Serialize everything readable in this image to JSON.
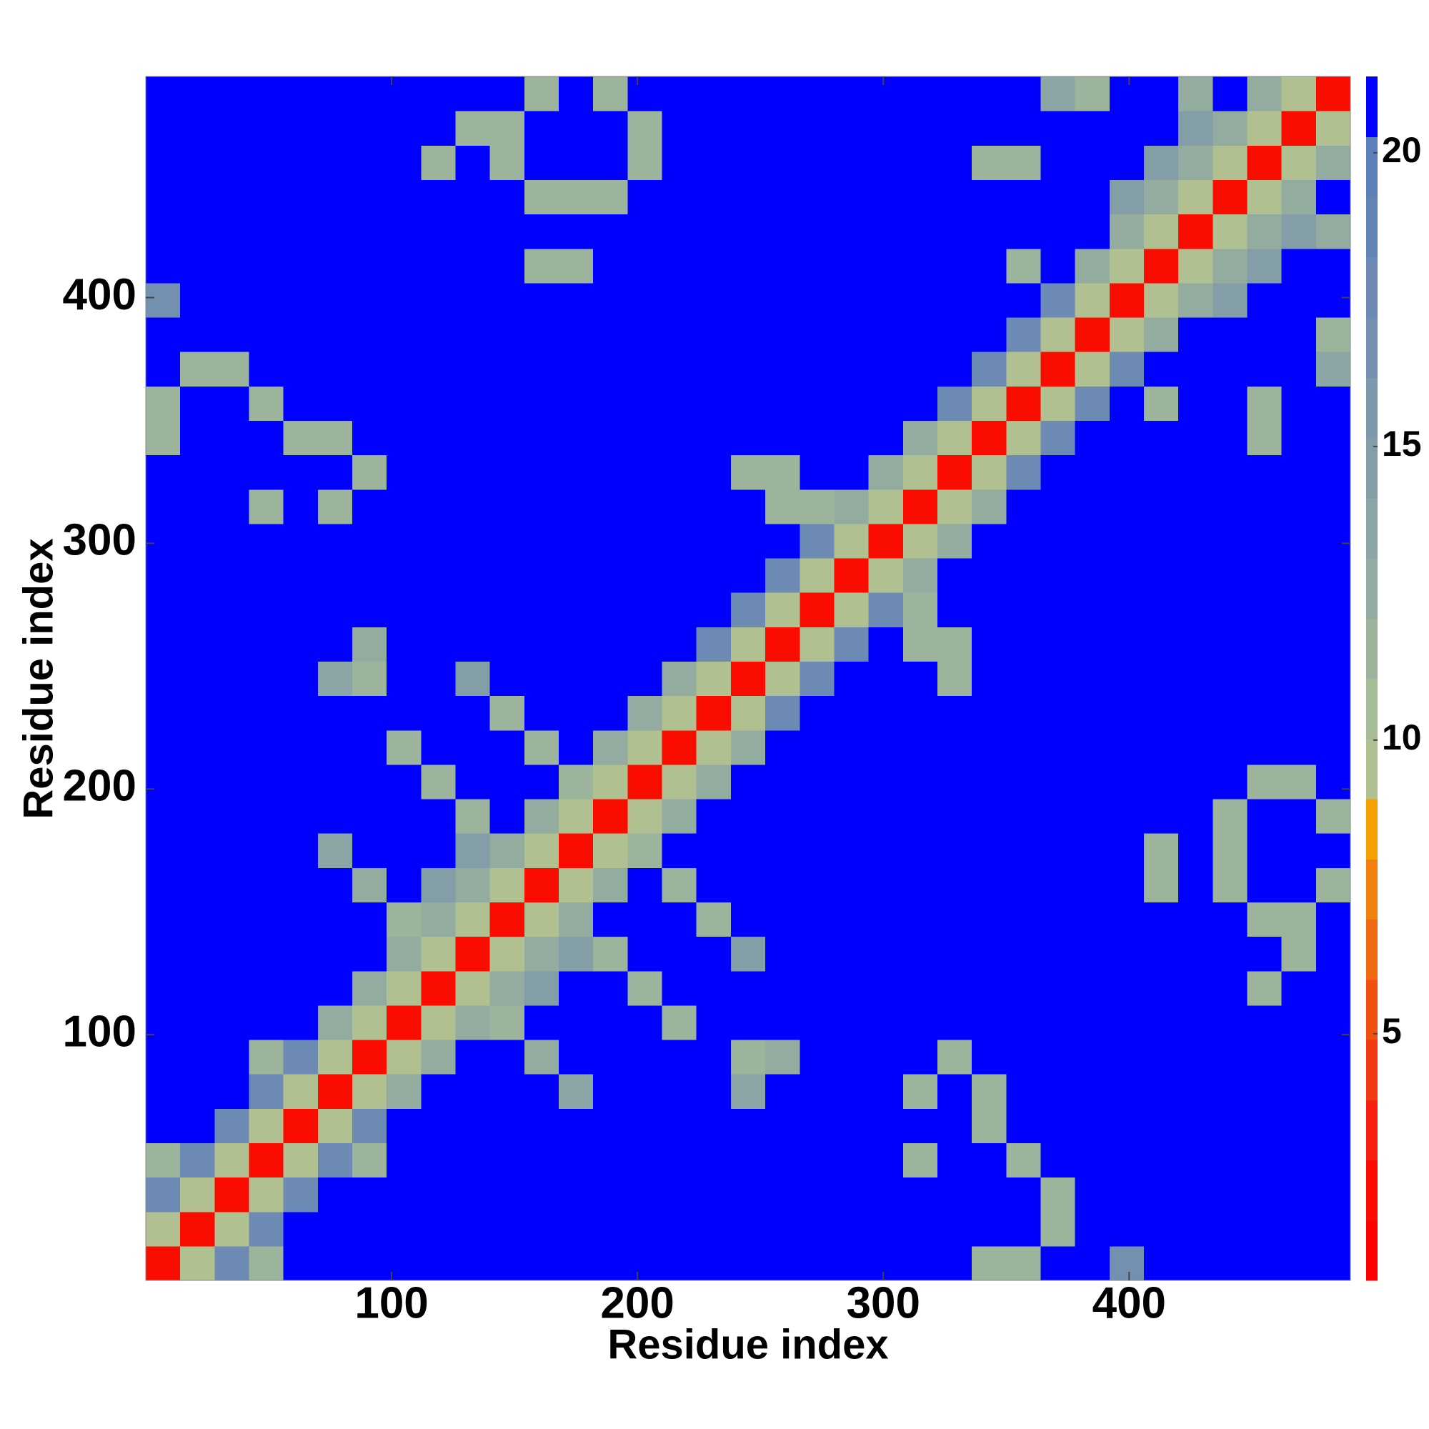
{
  "chart_data": {
    "type": "heatmap",
    "x_label": "Residue index",
    "y_label": "Residue index",
    "xlim": [
      0,
      490
    ],
    "ylim": [
      0,
      490
    ],
    "xticks": [
      100,
      200,
      300,
      400
    ],
    "yticks": [
      100,
      200,
      300,
      400
    ],
    "z": [
      [
        2,
        10,
        18,
        12,
        21,
        21,
        21,
        21,
        21,
        21,
        21,
        21,
        21,
        21,
        21,
        21,
        21,
        21,
        21,
        21,
        21,
        21,
        21,
        21,
        12,
        12,
        21,
        21,
        17,
        21,
        21,
        21,
        21,
        21,
        21
      ],
      [
        10,
        2,
        10,
        18,
        21,
        21,
        21,
        21,
        21,
        21,
        21,
        21,
        21,
        21,
        21,
        21,
        21,
        21,
        21,
        21,
        21,
        21,
        21,
        21,
        21,
        21,
        12,
        21,
        21,
        21,
        21,
        21,
        21,
        21,
        21
      ],
      [
        18,
        10,
        2,
        10,
        18,
        21,
        21,
        21,
        21,
        21,
        21,
        21,
        21,
        21,
        21,
        21,
        21,
        21,
        21,
        21,
        21,
        21,
        21,
        21,
        21,
        21,
        12,
        21,
        21,
        21,
        21,
        21,
        21,
        21,
        21
      ],
      [
        12,
        18,
        10,
        2,
        10,
        18,
        12,
        21,
        21,
        21,
        21,
        21,
        21,
        21,
        21,
        21,
        21,
        21,
        21,
        21,
        21,
        21,
        12,
        21,
        21,
        12,
        21,
        21,
        21,
        21,
        21,
        21,
        21,
        21,
        21
      ],
      [
        21,
        21,
        18,
        10,
        2,
        10,
        18,
        21,
        21,
        21,
        21,
        21,
        21,
        21,
        21,
        21,
        21,
        21,
        21,
        21,
        21,
        21,
        21,
        21,
        12,
        21,
        21,
        21,
        21,
        21,
        21,
        21,
        21,
        21,
        21
      ],
      [
        21,
        21,
        21,
        18,
        10,
        2,
        10,
        13,
        21,
        21,
        21,
        21,
        14,
        21,
        21,
        21,
        21,
        14,
        21,
        21,
        21,
        21,
        12,
        21,
        12,
        21,
        21,
        21,
        21,
        21,
        21,
        21,
        21,
        21,
        21
      ],
      [
        21,
        21,
        21,
        12,
        18,
        10,
        2,
        10,
        13,
        21,
        21,
        13,
        21,
        21,
        21,
        21,
        21,
        12,
        13,
        21,
        21,
        21,
        21,
        12,
        21,
        21,
        21,
        21,
        21,
        21,
        21,
        21,
        21,
        21,
        21
      ],
      [
        21,
        21,
        21,
        21,
        21,
        13,
        10,
        2,
        10,
        13,
        12,
        21,
        21,
        21,
        21,
        12,
        21,
        21,
        21,
        21,
        21,
        21,
        21,
        21,
        21,
        21,
        21,
        21,
        21,
        21,
        21,
        21,
        21,
        21,
        21
      ],
      [
        21,
        21,
        21,
        21,
        21,
        21,
        13,
        10,
        2,
        10,
        13,
        15,
        21,
        21,
        12,
        21,
        21,
        21,
        21,
        21,
        21,
        21,
        21,
        21,
        21,
        21,
        21,
        21,
        21,
        21,
        21,
        21,
        12,
        21,
        21
      ],
      [
        21,
        21,
        21,
        21,
        21,
        21,
        21,
        13,
        10,
        2,
        10,
        13,
        15,
        12,
        21,
        21,
        21,
        15,
        21,
        21,
        21,
        21,
        21,
        21,
        21,
        21,
        21,
        21,
        21,
        21,
        21,
        21,
        21,
        12,
        21
      ],
      [
        21,
        21,
        21,
        21,
        21,
        21,
        21,
        12,
        13,
        10,
        2,
        10,
        13,
        21,
        21,
        21,
        12,
        21,
        21,
        21,
        21,
        21,
        21,
        21,
        21,
        21,
        21,
        21,
        21,
        21,
        21,
        21,
        12,
        12,
        21
      ],
      [
        21,
        21,
        21,
        21,
        21,
        21,
        13,
        21,
        15,
        13,
        10,
        2,
        10,
        13,
        21,
        12,
        21,
        21,
        21,
        21,
        21,
        21,
        21,
        21,
        21,
        21,
        21,
        21,
        21,
        12,
        21,
        12,
        21,
        21,
        12
      ],
      [
        21,
        21,
        21,
        21,
        21,
        14,
        21,
        21,
        21,
        15,
        13,
        10,
        2,
        10,
        12,
        21,
        21,
        21,
        21,
        21,
        21,
        21,
        21,
        21,
        21,
        21,
        21,
        21,
        21,
        12,
        21,
        12,
        21,
        21,
        21
      ],
      [
        21,
        21,
        21,
        21,
        21,
        21,
        21,
        21,
        21,
        12,
        21,
        13,
        10,
        2,
        10,
        13,
        21,
        21,
        21,
        21,
        21,
        21,
        21,
        21,
        21,
        21,
        21,
        21,
        21,
        21,
        21,
        12,
        21,
        21,
        12
      ],
      [
        21,
        21,
        21,
        21,
        21,
        21,
        21,
        21,
        12,
        21,
        21,
        21,
        12,
        10,
        2,
        10,
        13,
        21,
        21,
        21,
        21,
        21,
        21,
        21,
        21,
        21,
        21,
        21,
        21,
        21,
        21,
        21,
        12,
        12,
        21
      ],
      [
        21,
        21,
        21,
        21,
        21,
        21,
        21,
        12,
        21,
        21,
        21,
        12,
        21,
        13,
        10,
        2,
        10,
        13,
        21,
        21,
        21,
        21,
        21,
        21,
        21,
        21,
        21,
        21,
        21,
        21,
        21,
        21,
        21,
        21,
        21
      ],
      [
        21,
        21,
        21,
        21,
        21,
        21,
        21,
        21,
        21,
        21,
        12,
        21,
        21,
        21,
        13,
        10,
        2,
        10,
        18,
        21,
        21,
        21,
        21,
        21,
        21,
        21,
        21,
        21,
        21,
        21,
        21,
        21,
        21,
        21,
        21
      ],
      [
        21,
        21,
        21,
        21,
        21,
        14,
        12,
        21,
        21,
        15,
        21,
        21,
        21,
        21,
        21,
        13,
        10,
        2,
        10,
        18,
        21,
        21,
        21,
        12,
        21,
        21,
        21,
        21,
        21,
        21,
        21,
        21,
        21,
        21,
        21
      ],
      [
        21,
        21,
        21,
        21,
        21,
        21,
        13,
        21,
        21,
        21,
        21,
        21,
        21,
        21,
        21,
        21,
        18,
        10,
        2,
        10,
        18,
        21,
        12,
        12,
        21,
        21,
        21,
        21,
        21,
        21,
        21,
        21,
        21,
        21,
        21
      ],
      [
        21,
        21,
        21,
        21,
        21,
        21,
        21,
        21,
        21,
        21,
        21,
        21,
        21,
        21,
        21,
        21,
        21,
        18,
        10,
        2,
        10,
        18,
        12,
        21,
        21,
        21,
        21,
        21,
        21,
        21,
        21,
        21,
        21,
        21,
        21
      ],
      [
        21,
        21,
        21,
        21,
        21,
        21,
        21,
        21,
        21,
        21,
        21,
        21,
        21,
        21,
        21,
        21,
        21,
        21,
        18,
        10,
        2,
        10,
        13,
        21,
        21,
        21,
        21,
        21,
        21,
        21,
        21,
        21,
        21,
        21,
        21
      ],
      [
        21,
        21,
        21,
        21,
        21,
        21,
        21,
        21,
        21,
        21,
        21,
        21,
        21,
        21,
        21,
        21,
        21,
        21,
        21,
        18,
        10,
        2,
        10,
        13,
        21,
        21,
        21,
        21,
        21,
        21,
        21,
        21,
        21,
        21,
        21
      ],
      [
        21,
        21,
        21,
        12,
        21,
        12,
        21,
        21,
        21,
        21,
        21,
        21,
        21,
        21,
        21,
        21,
        21,
        21,
        12,
        12,
        13,
        10,
        2,
        10,
        13,
        21,
        21,
        21,
        21,
        21,
        21,
        21,
        21,
        21,
        21
      ],
      [
        21,
        21,
        21,
        21,
        21,
        21,
        12,
        21,
        21,
        21,
        21,
        21,
        21,
        21,
        21,
        21,
        21,
        12,
        12,
        21,
        21,
        13,
        10,
        2,
        10,
        18,
        21,
        21,
        21,
        21,
        21,
        21,
        21,
        21,
        21
      ],
      [
        12,
        21,
        21,
        21,
        12,
        12,
        21,
        21,
        21,
        21,
        21,
        21,
        21,
        21,
        21,
        21,
        21,
        21,
        21,
        21,
        21,
        21,
        13,
        10,
        2,
        10,
        18,
        21,
        21,
        21,
        21,
        21,
        12,
        21,
        21
      ],
      [
        12,
        21,
        21,
        12,
        21,
        21,
        21,
        21,
        21,
        21,
        21,
        21,
        21,
        21,
        21,
        21,
        21,
        21,
        21,
        21,
        21,
        21,
        21,
        18,
        10,
        2,
        10,
        18,
        21,
        12,
        21,
        21,
        12,
        21,
        21
      ],
      [
        21,
        12,
        12,
        21,
        21,
        21,
        21,
        21,
        21,
        21,
        21,
        21,
        21,
        21,
        21,
        21,
        21,
        21,
        21,
        21,
        21,
        21,
        21,
        21,
        18,
        10,
        2,
        10,
        18,
        21,
        21,
        21,
        21,
        21,
        14
      ],
      [
        21,
        21,
        21,
        21,
        21,
        21,
        21,
        21,
        21,
        21,
        21,
        21,
        21,
        21,
        21,
        21,
        21,
        21,
        21,
        21,
        21,
        21,
        21,
        21,
        21,
        18,
        10,
        2,
        10,
        13,
        21,
        21,
        21,
        21,
        12
      ],
      [
        17,
        21,
        21,
        21,
        21,
        21,
        21,
        21,
        21,
        21,
        21,
        21,
        21,
        21,
        21,
        21,
        21,
        21,
        21,
        21,
        21,
        21,
        21,
        21,
        21,
        21,
        18,
        10,
        2,
        10,
        13,
        15,
        21,
        21,
        21
      ],
      [
        21,
        21,
        21,
        21,
        21,
        21,
        21,
        21,
        21,
        21,
        21,
        12,
        12,
        21,
        21,
        21,
        21,
        21,
        21,
        21,
        21,
        21,
        21,
        21,
        21,
        12,
        21,
        13,
        10,
        2,
        10,
        13,
        15,
        21,
        21
      ],
      [
        21,
        21,
        21,
        21,
        21,
        21,
        21,
        21,
        21,
        21,
        21,
        21,
        21,
        21,
        21,
        21,
        21,
        21,
        21,
        21,
        21,
        21,
        21,
        21,
        21,
        21,
        21,
        21,
        13,
        10,
        2,
        10,
        13,
        15,
        13
      ],
      [
        21,
        21,
        21,
        21,
        21,
        21,
        21,
        21,
        21,
        21,
        21,
        12,
        12,
        12,
        21,
        21,
        21,
        21,
        21,
        21,
        21,
        21,
        21,
        21,
        21,
        21,
        21,
        21,
        15,
        13,
        10,
        2,
        10,
        13,
        21
      ],
      [
        21,
        21,
        21,
        21,
        21,
        21,
        21,
        21,
        12,
        21,
        12,
        21,
        21,
        21,
        12,
        21,
        21,
        21,
        21,
        21,
        21,
        21,
        21,
        21,
        12,
        12,
        21,
        21,
        21,
        15,
        13,
        10,
        2,
        10,
        13
      ],
      [
        21,
        21,
        21,
        21,
        21,
        21,
        21,
        21,
        21,
        12,
        12,
        21,
        21,
        21,
        12,
        21,
        21,
        21,
        21,
        21,
        21,
        21,
        21,
        21,
        21,
        21,
        21,
        21,
        21,
        21,
        15,
        13,
        10,
        2,
        10
      ],
      [
        21,
        21,
        21,
        21,
        21,
        21,
        21,
        21,
        21,
        21,
        21,
        12,
        21,
        12,
        21,
        21,
        21,
        21,
        21,
        21,
        21,
        21,
        21,
        21,
        21,
        21,
        14,
        12,
        21,
        21,
        13,
        21,
        13,
        10,
        2
      ]
    ],
    "colorbar": {
      "lim": [
        0.8,
        21.3
      ],
      "ticks": [
        5,
        10,
        15,
        20
      ],
      "colors": [
        "#ff0000",
        "#fb0c00",
        "#f82010",
        "#f53a10",
        "#f25010",
        "#f26a10",
        "#f48010",
        "#f8a000",
        "#b0c090",
        "#a6bc96",
        "#9cb49c",
        "#94aca0",
        "#8ca6a6",
        "#849ea8",
        "#7c98ac",
        "#7490b0",
        "#6c8ab4",
        "#6484b8",
        "#5c80bc",
        "#0000ff"
      ]
    }
  }
}
